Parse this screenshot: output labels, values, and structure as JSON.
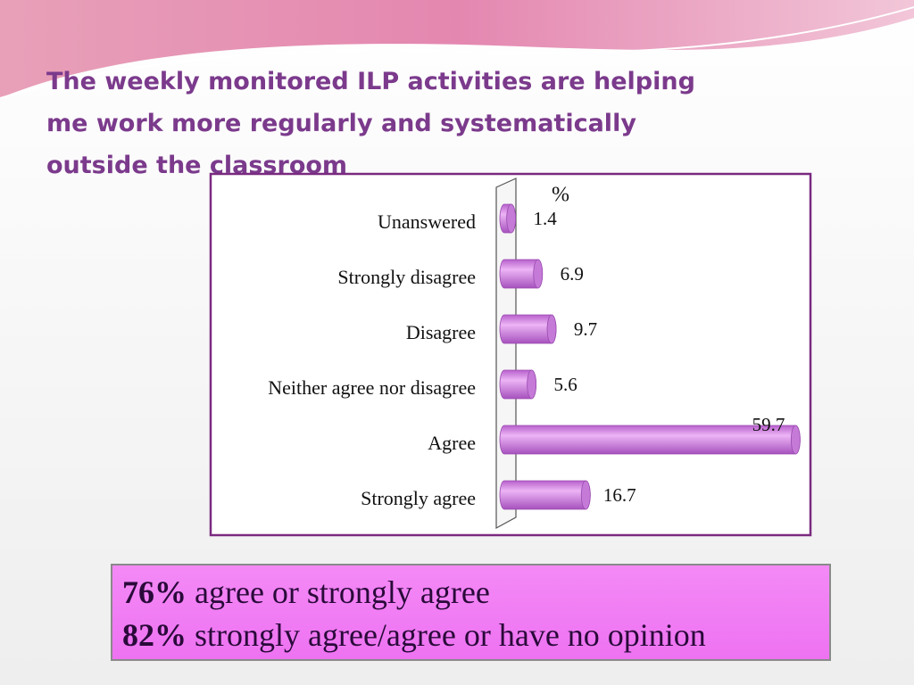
{
  "chart_data": {
    "type": "bar",
    "orientation": "horizontal",
    "title": "The weekly monitored ILP activities are helping me work more regularly and systematically outside the classroom",
    "x_label": "%",
    "categories": [
      "Unanswered",
      "Strongly disagree",
      "Disagree",
      "Neither agree nor disagree",
      "Agree",
      "Strongly agree"
    ],
    "values": [
      1.4,
      6.9,
      9.7,
      5.6,
      59.7,
      16.7
    ],
    "color": "#d58be6",
    "xlim": [
      0,
      60
    ]
  },
  "summary": [
    {
      "figure": "76%",
      "text": "agree or strongly agree"
    },
    {
      "figure": "82%",
      "text": "strongly agree/agree or have no opinion"
    }
  ]
}
